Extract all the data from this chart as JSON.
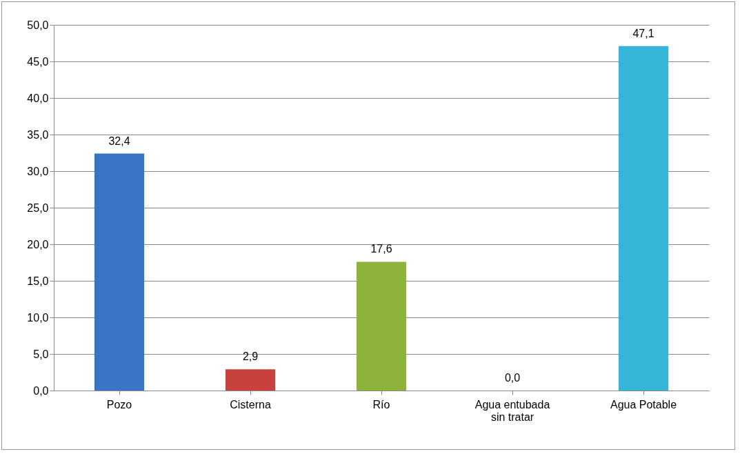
{
  "chart_data": {
    "type": "bar",
    "categories": [
      "Pozo",
      "Cisterna",
      "Río",
      "Agua entubada sin tratar",
      "Agua Potable"
    ],
    "values": [
      32.4,
      2.9,
      17.6,
      0.0,
      47.1
    ],
    "colors": [
      "#3a74c4",
      "#c9413d",
      "#8db33a",
      "#7d60a0",
      "#35b5d8"
    ],
    "value_labels": [
      "32,4",
      "2,9",
      "17,6",
      "0,0",
      "47,1"
    ],
    "ylim": [
      0,
      50
    ],
    "yticks": [
      {
        "value": 0,
        "label": "0,0"
      },
      {
        "value": 5,
        "label": "5,0"
      },
      {
        "value": 10,
        "label": "10,0"
      },
      {
        "value": 15,
        "label": "15,0"
      },
      {
        "value": 20,
        "label": "20,0"
      },
      {
        "value": 25,
        "label": "25,0"
      },
      {
        "value": 30,
        "label": "30,0"
      },
      {
        "value": 35,
        "label": "35,0"
      },
      {
        "value": 40,
        "label": "40,0"
      },
      {
        "value": 45,
        "label": "45,0"
      },
      {
        "value": 50,
        "label": "50,0"
      }
    ],
    "grid": "y"
  }
}
